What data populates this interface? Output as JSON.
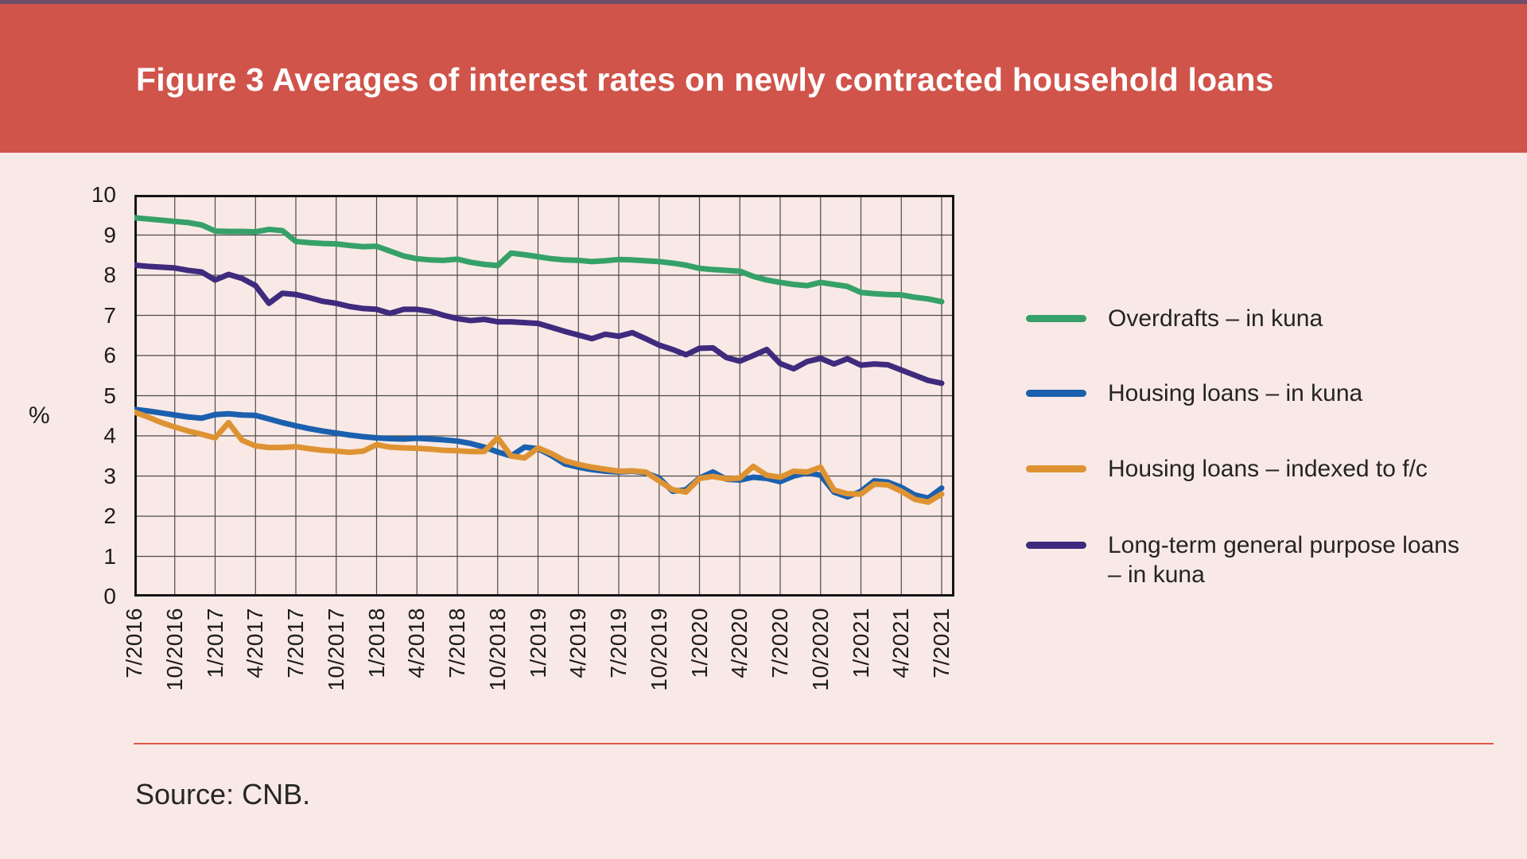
{
  "header": {
    "title": "Figure 3 Averages of interest rates on newly contracted household loans"
  },
  "axis": {
    "y_unit_label": "%"
  },
  "source": {
    "label": "Source: CNB."
  },
  "colors": {
    "banner": "#d0544a",
    "banner_top_border": "#6e4d68",
    "page_background": "#f9e9e6",
    "grid": "#4a4a4a",
    "axis_frame": "#141414",
    "divider": "#df5849",
    "overdrafts": "#35a169",
    "housing_kuna": "#1b60ae",
    "housing_fc": "#de9333",
    "general_purpose": "#3f2b7d"
  },
  "legend": {
    "position": "right",
    "items": [
      {
        "lines": [
          "Overdrafts – in kuna"
        ]
      },
      {
        "lines": [
          "Housing loans – in kuna"
        ]
      },
      {
        "lines": [
          "Housing loans – indexed to f/c"
        ]
      },
      {
        "lines": [
          "Long-term general purpose loans",
          "– in kuna"
        ]
      }
    ]
  },
  "chart_data": {
    "type": "line",
    "title": "Figure 3 Averages of interest rates on newly contracted household loans",
    "xlabel": "",
    "ylabel": "%",
    "ylim": [
      0,
      10
    ],
    "yticks": [
      0,
      1,
      2,
      3,
      4,
      5,
      6,
      7,
      8,
      9,
      10
    ],
    "grid": "both",
    "legend_position": "right",
    "x_frequency": "monthly",
    "x_range": [
      "7/2016",
      "7/2021"
    ],
    "x_tick_labels": [
      "7/2016",
      "10/2016",
      "1/2017",
      "4/2017",
      "7/2017",
      "10/2017",
      "1/2018",
      "4/2018",
      "7/2018",
      "10/2018",
      "1/2019",
      "4/2019",
      "7/2019",
      "10/2019",
      "1/2020",
      "4/2020",
      "7/2020",
      "10/2020",
      "1/2021",
      "4/2021",
      "7/2021"
    ],
    "series": [
      {
        "name": "Overdrafts – in kuna",
        "id": "overdrafts-in-kuna",
        "color": "#35a169",
        "values": [
          9.43,
          9.4,
          9.37,
          9.34,
          9.31,
          9.25,
          9.1,
          9.09,
          9.09,
          9.08,
          9.14,
          9.11,
          8.84,
          8.81,
          8.79,
          8.78,
          8.74,
          8.71,
          8.72,
          8.6,
          8.48,
          8.41,
          8.38,
          8.37,
          8.4,
          8.32,
          8.27,
          8.24,
          8.55,
          8.51,
          8.46,
          8.41,
          8.38,
          8.37,
          8.34,
          8.36,
          8.39,
          8.38,
          8.36,
          8.34,
          8.3,
          8.25,
          8.17,
          8.14,
          8.12,
          8.1,
          7.97,
          7.88,
          7.82,
          7.77,
          7.74,
          7.82,
          7.77,
          7.72,
          7.57,
          7.54,
          7.52,
          7.51,
          7.45,
          7.41,
          7.34
        ]
      },
      {
        "name": "Housing loans – in kuna",
        "id": "housing-loans-in-kuna",
        "color": "#1b60ae",
        "values": [
          4.66,
          4.62,
          4.57,
          4.52,
          4.47,
          4.44,
          4.53,
          4.55,
          4.52,
          4.51,
          4.42,
          4.33,
          4.25,
          4.18,
          4.12,
          4.07,
          4.02,
          3.98,
          3.95,
          3.93,
          3.92,
          3.94,
          3.92,
          3.9,
          3.87,
          3.81,
          3.72,
          3.6,
          3.5,
          3.72,
          3.68,
          3.51,
          3.3,
          3.22,
          3.16,
          3.12,
          3.1,
          3.12,
          3.08,
          2.95,
          2.62,
          2.66,
          2.95,
          3.1,
          2.92,
          2.9,
          2.97,
          2.94,
          2.86,
          3.0,
          3.08,
          3.02,
          2.6,
          2.48,
          2.62,
          2.88,
          2.85,
          2.72,
          2.53,
          2.45,
          2.7
        ]
      },
      {
        "name": "Housing loans – indexed to f/c",
        "id": "housing-loans-indexed-to-fc",
        "color": "#de9333",
        "values": [
          4.59,
          4.47,
          4.33,
          4.22,
          4.12,
          4.04,
          3.95,
          4.33,
          3.89,
          3.75,
          3.71,
          3.71,
          3.73,
          3.68,
          3.64,
          3.62,
          3.59,
          3.62,
          3.78,
          3.72,
          3.7,
          3.69,
          3.67,
          3.64,
          3.63,
          3.61,
          3.61,
          3.95,
          3.5,
          3.45,
          3.7,
          3.56,
          3.38,
          3.29,
          3.22,
          3.17,
          3.12,
          3.13,
          3.1,
          2.88,
          2.66,
          2.6,
          2.94,
          2.99,
          2.93,
          2.95,
          3.24,
          3.02,
          2.97,
          3.12,
          3.1,
          3.22,
          2.65,
          2.56,
          2.55,
          2.8,
          2.78,
          2.62,
          2.42,
          2.35,
          2.55
        ]
      },
      {
        "name": "Long-term general purpose loans – in kuna",
        "id": "long-term-general-purpose-loans-in-kuna",
        "color": "#3f2b7d",
        "values": [
          8.25,
          8.22,
          8.2,
          8.18,
          8.12,
          8.08,
          7.88,
          8.02,
          7.92,
          7.74,
          7.3,
          7.55,
          7.52,
          7.44,
          7.35,
          7.3,
          7.22,
          7.17,
          7.15,
          7.05,
          7.15,
          7.15,
          7.1,
          7.0,
          6.92,
          6.87,
          6.9,
          6.84,
          6.84,
          6.82,
          6.8,
          6.7,
          6.6,
          6.51,
          6.42,
          6.53,
          6.48,
          6.57,
          6.42,
          6.26,
          6.15,
          6.02,
          6.18,
          6.19,
          5.95,
          5.86,
          6.0,
          6.15,
          5.8,
          5.67,
          5.85,
          5.93,
          5.79,
          5.92,
          5.76,
          5.79,
          5.77,
          5.64,
          5.51,
          5.38,
          5.31
        ]
      }
    ]
  }
}
